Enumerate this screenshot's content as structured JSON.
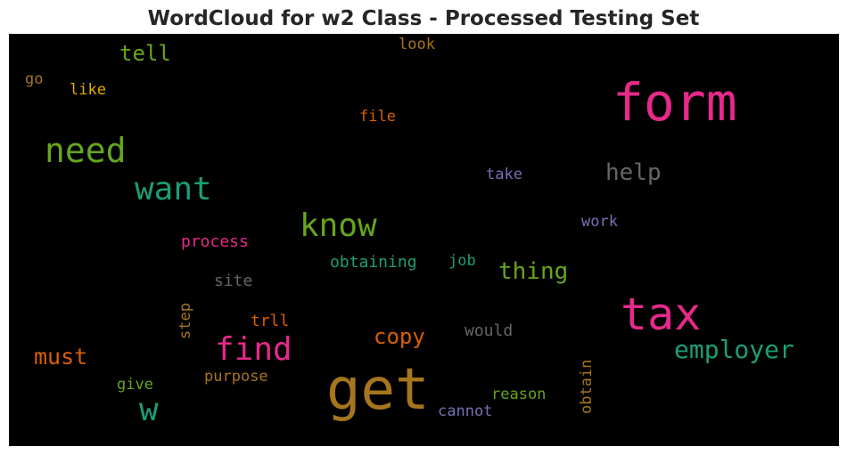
{
  "title": "WordCloud for w2 Class - Processed Testing Set",
  "colors": {
    "background": "#000000",
    "magenta": "#e7298a",
    "green": "#66a61e",
    "teal": "#1b9e77",
    "gold": "#a6761d",
    "orange": "#d95f02",
    "gray": "#666666",
    "purple": "#7570b3",
    "yellow": "#e6ab02"
  },
  "words": [
    {
      "text": "form",
      "color": "#e7298a",
      "weight": 58
    },
    {
      "text": "get",
      "color": "#a6761d",
      "weight": 64
    },
    {
      "text": "tax",
      "color": "#e7298a",
      "weight": 50
    },
    {
      "text": "need",
      "color": "#66a61e",
      "weight": 38
    },
    {
      "text": "want",
      "color": "#1b9e77",
      "weight": 36
    },
    {
      "text": "know",
      "color": "#66a61e",
      "weight": 36
    },
    {
      "text": "find",
      "color": "#e7298a",
      "weight": 36
    },
    {
      "text": "w",
      "color": "#1b9e77",
      "weight": 36
    },
    {
      "text": "employer",
      "color": "#1b9e77",
      "weight": 28
    },
    {
      "text": "help",
      "color": "#666666",
      "weight": 26
    },
    {
      "text": "thing",
      "color": "#66a61e",
      "weight": 26
    },
    {
      "text": "must",
      "color": "#d95f02",
      "weight": 25
    },
    {
      "text": "copy",
      "color": "#d95f02",
      "weight": 24
    },
    {
      "text": "tell",
      "color": "#66a61e",
      "weight": 24
    },
    {
      "text": "process",
      "color": "#e7298a",
      "weight": 18
    },
    {
      "text": "obtaining",
      "color": "#1b9e77",
      "weight": 18
    },
    {
      "text": "site",
      "color": "#666666",
      "weight": 18
    },
    {
      "text": "trll",
      "color": "#d95f02",
      "weight": 18
    },
    {
      "text": "would",
      "color": "#666666",
      "weight": 18
    },
    {
      "text": "purpose",
      "color": "#a6761d",
      "weight": 17
    },
    {
      "text": "give",
      "color": "#66a61e",
      "weight": 17
    },
    {
      "text": "reason",
      "color": "#66a61e",
      "weight": 17
    },
    {
      "text": "cannot",
      "color": "#7570b3",
      "weight": 17
    },
    {
      "text": "file",
      "color": "#d95f02",
      "weight": 17
    },
    {
      "text": "look",
      "color": "#a6761d",
      "weight": 17
    },
    {
      "text": "like",
      "color": "#e6ab02",
      "weight": 17
    },
    {
      "text": "go",
      "color": "#a6761d",
      "weight": 17
    },
    {
      "text": "take",
      "color": "#7570b3",
      "weight": 17
    },
    {
      "text": "work",
      "color": "#7570b3",
      "weight": 17
    },
    {
      "text": "job",
      "color": "#1b9e77",
      "weight": 17
    },
    {
      "text": "step",
      "color": "#a6761d",
      "weight": 17
    },
    {
      "text": "obtain",
      "color": "#a6761d",
      "weight": 17
    }
  ]
}
